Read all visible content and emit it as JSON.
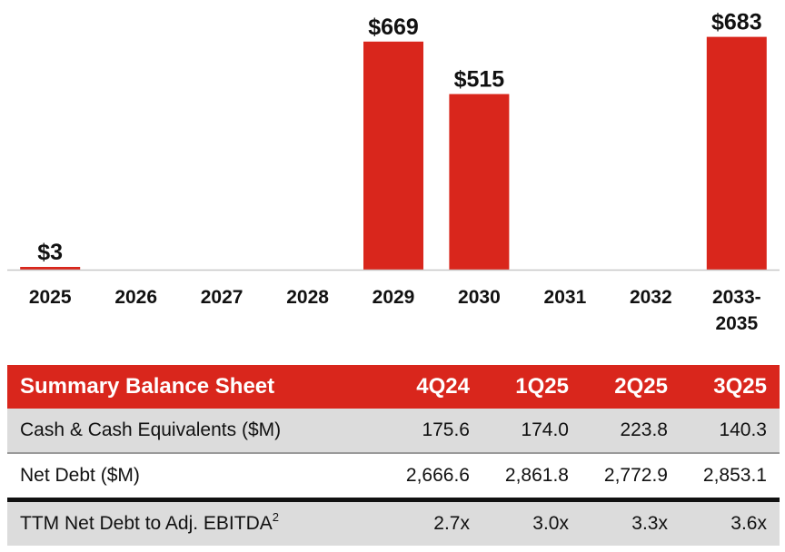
{
  "colors": {
    "bar": "#d9261c",
    "header_bg": "#d9261c",
    "header_text": "#ffffff",
    "row_shade": "#dcdcdc",
    "axis": "#c8c8c8"
  },
  "chart_data": {
    "type": "bar",
    "title": "",
    "xlabel": "",
    "ylabel": "",
    "ylim": [
      0,
      700
    ],
    "grid": false,
    "legend": "none",
    "categories": [
      "2025",
      "2026",
      "2027",
      "2028",
      "2029",
      "2030",
      "2031",
      "2032",
      "2033-\n2035"
    ],
    "category_lines": [
      [
        "2025"
      ],
      [
        "2026"
      ],
      [
        "2027"
      ],
      [
        "2028"
      ],
      [
        "2029"
      ],
      [
        "2030"
      ],
      [
        "2031"
      ],
      [
        "2032"
      ],
      [
        "2033-",
        "2035"
      ]
    ],
    "values": [
      3,
      null,
      null,
      null,
      669,
      515,
      null,
      null,
      683
    ],
    "data_labels": [
      "$3",
      "",
      "",
      "",
      "$669",
      "$515",
      "",
      "",
      "$683"
    ]
  },
  "table": {
    "headers": [
      "Summary Balance Sheet",
      "4Q24",
      "1Q25",
      "2Q25",
      "3Q25"
    ],
    "rows": [
      {
        "label": "Cash & Cash Equivalents ($M)",
        "sup": "",
        "values": [
          "175.6",
          "174.0",
          "223.8",
          "140.3"
        ]
      },
      {
        "label": "Net Debt ($M)",
        "sup": "",
        "values": [
          "2,666.6",
          "2,861.8",
          "2,772.9",
          "2,853.1"
        ]
      },
      {
        "label": "TTM Net Debt to Adj. EBITDA",
        "sup": "2",
        "values": [
          "2.7x",
          "3.0x",
          "3.3x",
          "3.6x"
        ]
      }
    ]
  }
}
